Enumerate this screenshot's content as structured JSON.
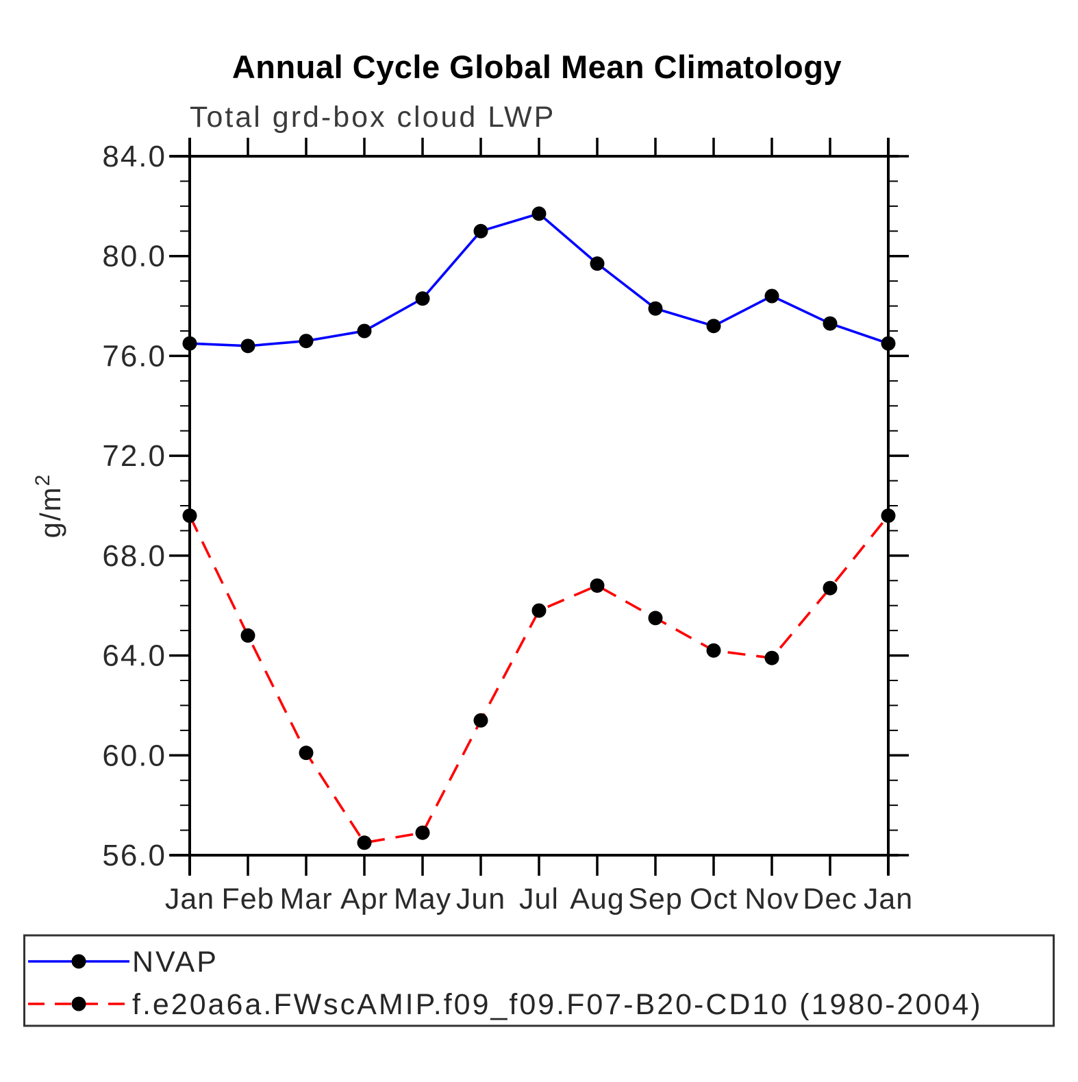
{
  "title": "Annual Cycle Global Mean Climatology",
  "subtitle": "Total grd-box cloud LWP",
  "chart_data": {
    "type": "line",
    "title": "Annual Cycle Global Mean Climatology",
    "subtitle": "Total grd-box cloud LWP",
    "ylabel": "g/m²",
    "ylabel_base": "g/m",
    "ylabel_sup": "2",
    "categories": [
      "Jan",
      "Feb",
      "Mar",
      "Apr",
      "May",
      "Jun",
      "Jul",
      "Aug",
      "Sep",
      "Oct",
      "Nov",
      "Dec",
      "Jan"
    ],
    "ylim": [
      56.0,
      84.0
    ],
    "ytick_labels": [
      "84.0",
      "80.0",
      "76.0",
      "72.0",
      "68.0",
      "64.0",
      "60.0",
      "56.0"
    ],
    "ytick_major_interval": 4.0,
    "ytick_minor_interval": 1.0,
    "grid": false,
    "legend_position": "bottom-box",
    "series": [
      {
        "name": "NVAP",
        "color": "#0000ff",
        "line_style": "solid",
        "marker": "filled-circle",
        "marker_color": "#000000",
        "values": [
          76.5,
          76.4,
          76.6,
          77.0,
          78.3,
          81.0,
          81.7,
          79.7,
          77.9,
          77.2,
          78.4,
          77.3,
          76.5
        ]
      },
      {
        "name": "f.e20a6a.FWscAMIP.f09_f09.F07-B20-CD10 (1980-2004)",
        "color": "#ff0000",
        "line_style": "dashed",
        "marker": "filled-circle",
        "marker_color": "#000000",
        "values": [
          69.6,
          64.8,
          60.1,
          56.5,
          56.9,
          61.4,
          65.8,
          66.8,
          65.5,
          64.2,
          63.9,
          66.7,
          69.6
        ]
      }
    ]
  },
  "colors": {
    "background": "#ffffff",
    "axis": "#000000",
    "series_blue": "#0000ff",
    "series_red": "#ff0000",
    "marker": "#000000",
    "legend_border": "#333333"
  }
}
